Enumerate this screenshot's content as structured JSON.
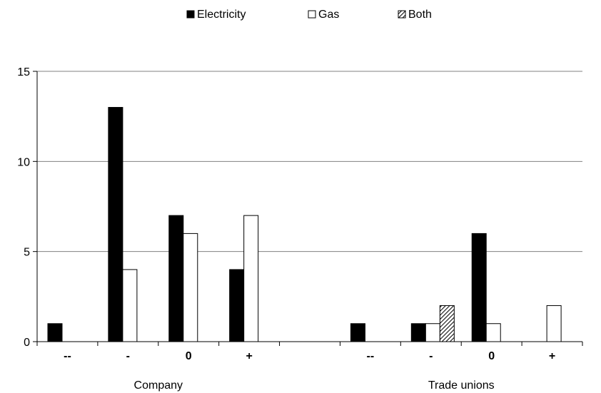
{
  "chart_data": {
    "type": "bar",
    "legend_position": "top",
    "grid": true,
    "ylim": [
      0,
      15
    ],
    "yticks": [
      0,
      5,
      10,
      15
    ],
    "groups": [
      {
        "label": "Company",
        "categories": [
          "--",
          "-",
          "0",
          "+"
        ]
      },
      {
        "label": "Trade unions",
        "categories": [
          "--",
          "-",
          "0",
          "+"
        ]
      }
    ],
    "categories": [
      "--",
      "-",
      "0",
      "+",
      "",
      "--",
      "-",
      "0",
      "+"
    ],
    "series": [
      {
        "name": "Electricity",
        "color": "#000000",
        "pattern": "solid",
        "values": [
          1,
          13,
          7,
          4,
          null,
          1,
          1,
          6,
          0
        ]
      },
      {
        "name": "Gas",
        "color": "#ffffff",
        "pattern": "outline",
        "values": [
          0,
          4,
          6,
          7,
          null,
          0,
          1,
          1,
          2
        ]
      },
      {
        "name": "Both",
        "color": "#888888",
        "pattern": "hatched",
        "values": [
          0,
          0,
          0,
          0,
          null,
          0,
          2,
          0,
          0
        ]
      }
    ]
  }
}
